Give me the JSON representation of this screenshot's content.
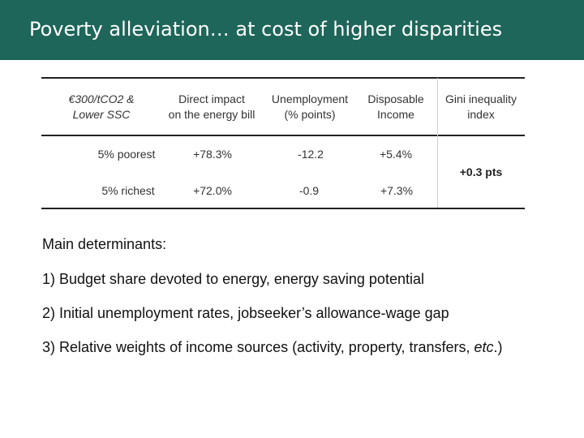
{
  "title": "Poverty alleviation… at cost of higher disparities",
  "table": {
    "headers": {
      "scenario_line1": "€300/tCO2 &",
      "scenario_line2": "Lower SSC",
      "direct_line1": "Direct impact",
      "direct_line2": "on the energy bill",
      "unemp_line1": "Unemployment",
      "unemp_line2": "(% points)",
      "disp_line1": "Disposable",
      "disp_line2": "Income",
      "gini_line1": "Gini inequality",
      "gini_line2": "index"
    },
    "rows": [
      {
        "label": "5% poorest",
        "direct": "+78.3%",
        "unemployment": "-12.2",
        "income": "+5.4%"
      },
      {
        "label": "5% richest",
        "direct": "+72.0%",
        "unemployment": "-0.9",
        "income": "+7.3%"
      }
    ],
    "gini_value": "+0.3 pts"
  },
  "determinants": {
    "title": "Main determinants:",
    "item1": "1) Budget share devoted to energy, energy saving potential",
    "item2": "2) Initial unemployment rates, jobseeker’s allowance-wage gap",
    "item3_prefix": "3) Relative weights of income sources (activity, property, transfers, ",
    "item3_etc": "etc",
    "item3_suffix": ".)"
  },
  "colors": {
    "title_bar": "#1e6659",
    "title_text": "#ffffff"
  }
}
